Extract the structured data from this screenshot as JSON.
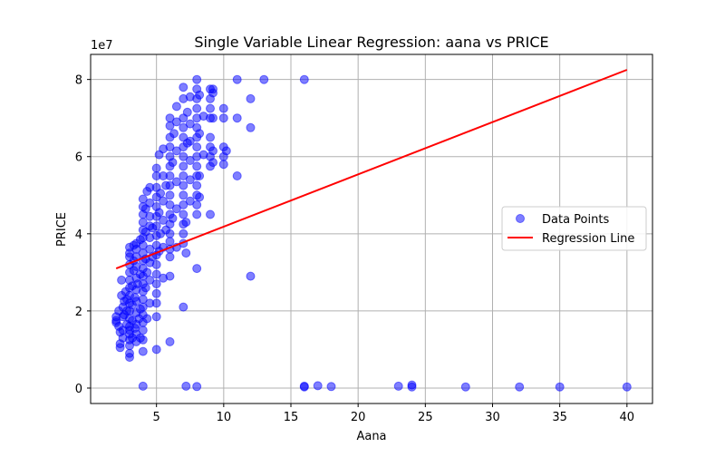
{
  "chart_data": {
    "type": "scatter",
    "title": "Single Variable Linear Regression: aana vs PRICE",
    "xlabel": "Aana",
    "ylabel": "PRICE",
    "xlim": [
      0.1,
      41.9
    ],
    "ylim": [
      -4000000,
      86500000
    ],
    "x_ticks": [
      5,
      10,
      15,
      20,
      25,
      30,
      35,
      40
    ],
    "y_ticks": [
      0,
      20000000,
      40000000,
      60000000,
      80000000
    ],
    "y_tick_labels": [
      "0",
      "2",
      "4",
      "6",
      "8"
    ],
    "y_offset_label": "1e7",
    "grid": true,
    "legend": {
      "position": "center-right",
      "entries": [
        "Data Points",
        "Regression Line"
      ]
    },
    "colors": {
      "points": "#0000ff",
      "regression": "#ff0000",
      "grid": "#b0b0b0"
    },
    "series": [
      {
        "name": "Data Points",
        "kind": "scatter",
        "points": [
          [
            2,
            17500000
          ],
          [
            2,
            18500000
          ],
          [
            2,
            17000000
          ],
          [
            2.2,
            16000000
          ],
          [
            2.2,
            20000000
          ],
          [
            2.3,
            10500000
          ],
          [
            2.3,
            11500000
          ],
          [
            2.3,
            14500000
          ],
          [
            2.4,
            24000000
          ],
          [
            2.4,
            28000000
          ],
          [
            2.5,
            13000000
          ],
          [
            2.5,
            15000000
          ],
          [
            2.5,
            18500000
          ],
          [
            2.5,
            21000000
          ],
          [
            2.6,
            22500000
          ],
          [
            2.6,
            19000000
          ],
          [
            2.7,
            25000000
          ],
          [
            2.8,
            16500000
          ],
          [
            2.8,
            20000000
          ],
          [
            2.8,
            23000000
          ],
          [
            3,
            8000000
          ],
          [
            3,
            9000000
          ],
          [
            3,
            11000000
          ],
          [
            3,
            12500000
          ],
          [
            3,
            14000000
          ],
          [
            3,
            15000000
          ],
          [
            3,
            16000000
          ],
          [
            3,
            18000000
          ],
          [
            3,
            20000000
          ],
          [
            3,
            22000000
          ],
          [
            3,
            24000000
          ],
          [
            3,
            26000000
          ],
          [
            3,
            28000000
          ],
          [
            3,
            30000000
          ],
          [
            3,
            32000000
          ],
          [
            3,
            34000000
          ],
          [
            3,
            35000000
          ],
          [
            3,
            36500000
          ],
          [
            3.2,
            13000000
          ],
          [
            3.2,
            17500000
          ],
          [
            3.2,
            21500000
          ],
          [
            3.2,
            26500000
          ],
          [
            3.3,
            30500000
          ],
          [
            3.3,
            33000000
          ],
          [
            3.3,
            37000000
          ],
          [
            3.4,
            15500000
          ],
          [
            3.4,
            23500000
          ],
          [
            3.5,
            12000000
          ],
          [
            3.5,
            14000000
          ],
          [
            3.5,
            16500000
          ],
          [
            3.5,
            19500000
          ],
          [
            3.5,
            22500000
          ],
          [
            3.5,
            25500000
          ],
          [
            3.5,
            28500000
          ],
          [
            3.5,
            31500000
          ],
          [
            3.5,
            34000000
          ],
          [
            3.5,
            36000000
          ],
          [
            3.5,
            37500000
          ],
          [
            3.6,
            27000000
          ],
          [
            3.7,
            18000000
          ],
          [
            3.8,
            13000000
          ],
          [
            3.8,
            20500000
          ],
          [
            3.8,
            29500000
          ],
          [
            3.8,
            38500000
          ],
          [
            4,
            9500000
          ],
          [
            4,
            12500000
          ],
          [
            4,
            15000000
          ],
          [
            4,
            17000000
          ],
          [
            4,
            19000000
          ],
          [
            4,
            21000000
          ],
          [
            4,
            23000000
          ],
          [
            4,
            25000000
          ],
          [
            4,
            27000000
          ],
          [
            4,
            29000000
          ],
          [
            4,
            31000000
          ],
          [
            4,
            33000000
          ],
          [
            4,
            35000000
          ],
          [
            4,
            37000000
          ],
          [
            4,
            39000000
          ],
          [
            4,
            41000000
          ],
          [
            4,
            43000000
          ],
          [
            4,
            45000000
          ],
          [
            4,
            47000000
          ],
          [
            4,
            49000000
          ],
          [
            4,
            500000
          ],
          [
            4.2,
            26000000
          ],
          [
            4.2,
            33500000
          ],
          [
            4.2,
            40500000
          ],
          [
            4.2,
            46500000
          ],
          [
            4.3,
            18000000
          ],
          [
            4.3,
            30000000
          ],
          [
            4.3,
            51000000
          ],
          [
            4.5,
            22000000
          ],
          [
            4.5,
            28000000
          ],
          [
            4.5,
            32500000
          ],
          [
            4.5,
            36000000
          ],
          [
            4.5,
            39000000
          ],
          [
            4.5,
            42000000
          ],
          [
            4.5,
            44500000
          ],
          [
            4.5,
            48000000
          ],
          [
            4.5,
            52000000
          ],
          [
            4.7,
            34000000
          ],
          [
            4.7,
            41500000
          ],
          [
            5,
            10000000
          ],
          [
            5,
            18500000
          ],
          [
            5,
            22000000
          ],
          [
            5,
            24500000
          ],
          [
            5,
            27000000
          ],
          [
            5,
            29500000
          ],
          [
            5,
            32000000
          ],
          [
            5,
            34500000
          ],
          [
            5,
            37000000
          ],
          [
            5,
            39500000
          ],
          [
            5,
            42000000
          ],
          [
            5,
            44500000
          ],
          [
            5,
            47000000
          ],
          [
            5,
            49500000
          ],
          [
            5,
            52000000
          ],
          [
            5,
            55000000
          ],
          [
            5,
            57000000
          ],
          [
            5.2,
            35500000
          ],
          [
            5.2,
            45500000
          ],
          [
            5.2,
            60500000
          ],
          [
            5.3,
            40000000
          ],
          [
            5.3,
            50500000
          ],
          [
            5.5,
            28500000
          ],
          [
            5.5,
            36500000
          ],
          [
            5.5,
            43500000
          ],
          [
            5.5,
            48500000
          ],
          [
            5.5,
            55000000
          ],
          [
            5.5,
            62000000
          ],
          [
            5.7,
            41000000
          ],
          [
            5.7,
            52500000
          ],
          [
            6,
            12000000
          ],
          [
            6,
            29000000
          ],
          [
            6,
            34000000
          ],
          [
            6,
            36000000
          ],
          [
            6,
            38000000
          ],
          [
            6,
            40000000
          ],
          [
            6,
            42500000
          ],
          [
            6,
            45000000
          ],
          [
            6,
            47500000
          ],
          [
            6,
            50000000
          ],
          [
            6,
            52500000
          ],
          [
            6,
            55000000
          ],
          [
            6,
            57500000
          ],
          [
            6,
            60000000
          ],
          [
            6,
            62500000
          ],
          [
            6,
            65000000
          ],
          [
            6,
            68000000
          ],
          [
            6,
            70000000
          ],
          [
            6.2,
            44000000
          ],
          [
            6.2,
            58500000
          ],
          [
            6.3,
            66000000
          ],
          [
            6.5,
            36500000
          ],
          [
            6.5,
            46500000
          ],
          [
            6.5,
            53500000
          ],
          [
            6.5,
            61500000
          ],
          [
            6.5,
            69000000
          ],
          [
            6.5,
            73000000
          ],
          [
            7,
            21000000
          ],
          [
            7,
            37500000
          ],
          [
            7,
            40000000
          ],
          [
            7,
            42500000
          ],
          [
            7,
            45000000
          ],
          [
            7,
            47500000
          ],
          [
            7,
            50000000
          ],
          [
            7,
            52500000
          ],
          [
            7,
            55000000
          ],
          [
            7,
            57500000
          ],
          [
            7,
            60000000
          ],
          [
            7,
            62500000
          ],
          [
            7,
            65000000
          ],
          [
            7,
            67500000
          ],
          [
            7,
            70000000
          ],
          [
            7,
            75000000
          ],
          [
            7,
            78000000
          ],
          [
            7.2,
            35000000
          ],
          [
            7.2,
            43000000
          ],
          [
            7.2,
            500000
          ],
          [
            7.3,
            63500000
          ],
          [
            7.3,
            71500000
          ],
          [
            7.5,
            48500000
          ],
          [
            7.5,
            54000000
          ],
          [
            7.5,
            59000000
          ],
          [
            7.5,
            64000000
          ],
          [
            7.5,
            68500000
          ],
          [
            7.5,
            75500000
          ],
          [
            8,
            31000000
          ],
          [
            8,
            45000000
          ],
          [
            8,
            47500000
          ],
          [
            8,
            50000000
          ],
          [
            8,
            52500000
          ],
          [
            8,
            55000000
          ],
          [
            8,
            57500000
          ],
          [
            8,
            60000000
          ],
          [
            8,
            62500000
          ],
          [
            8,
            65000000
          ],
          [
            8,
            67500000
          ],
          [
            8,
            70000000
          ],
          [
            8,
            72500000
          ],
          [
            8,
            75000000
          ],
          [
            8,
            77500000
          ],
          [
            8,
            80000000
          ],
          [
            8,
            400000
          ],
          [
            8.2,
            49500000
          ],
          [
            8.2,
            55000000
          ],
          [
            8.2,
            66000000
          ],
          [
            8.2,
            76000000
          ],
          [
            8.5,
            60500000
          ],
          [
            8.5,
            70500000
          ],
          [
            9,
            45000000
          ],
          [
            9,
            57500000
          ],
          [
            9,
            60000000
          ],
          [
            9,
            62500000
          ],
          [
            9,
            65000000
          ],
          [
            9,
            70000000
          ],
          [
            9,
            72500000
          ],
          [
            9,
            75000000
          ],
          [
            9,
            77500000
          ],
          [
            9.2,
            58500000
          ],
          [
            9.2,
            61500000
          ],
          [
            9.2,
            70000000
          ],
          [
            9.2,
            76500000
          ],
          [
            9.2,
            77500000
          ],
          [
            10,
            58000000
          ],
          [
            10,
            60000000
          ],
          [
            10,
            62500000
          ],
          [
            10,
            70000000
          ],
          [
            10,
            72500000
          ],
          [
            10.2,
            61500000
          ],
          [
            11,
            55000000
          ],
          [
            11,
            70000000
          ],
          [
            11,
            80000000
          ],
          [
            12,
            29000000
          ],
          [
            12,
            67500000
          ],
          [
            12,
            75000000
          ],
          [
            13,
            80000000
          ],
          [
            16,
            80000000
          ],
          [
            16,
            500000
          ],
          [
            16,
            300000
          ],
          [
            17,
            600000
          ],
          [
            18,
            400000
          ],
          [
            23,
            500000
          ],
          [
            24,
            800000
          ],
          [
            24,
            300000
          ],
          [
            28,
            300000
          ],
          [
            32,
            300000
          ],
          [
            35,
            300000
          ],
          [
            40,
            300000
          ]
        ]
      },
      {
        "name": "Regression Line",
        "kind": "line",
        "points": [
          [
            2,
            31000000
          ],
          [
            40,
            82500000
          ]
        ]
      }
    ]
  }
}
